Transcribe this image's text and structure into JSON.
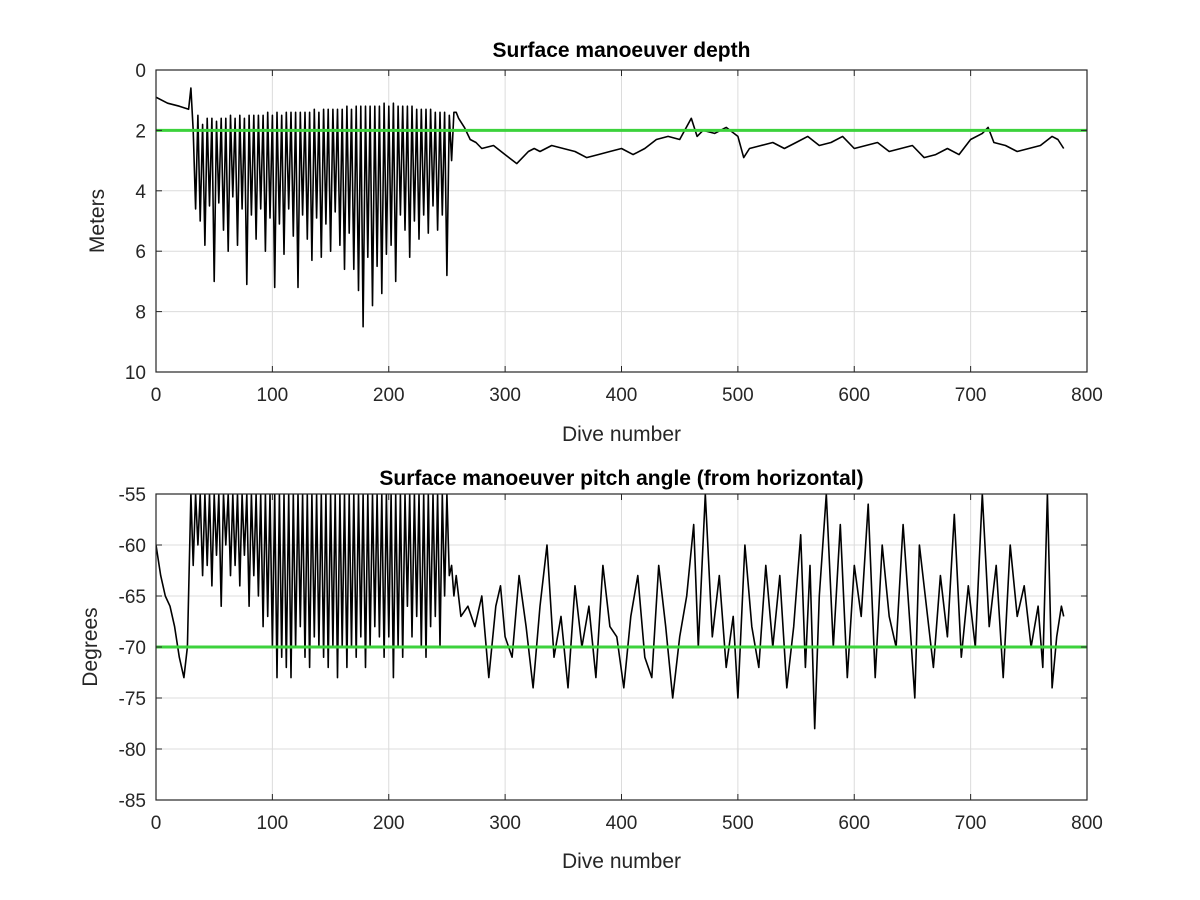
{
  "colors": {
    "series": "#000000",
    "reference": "#3cd23c",
    "grid": "#dcdcdc",
    "axes": "#262626"
  },
  "chart_data": [
    {
      "type": "line",
      "title": "Surface manoeuver depth",
      "xlabel": "Dive number",
      "ylabel": "Meters",
      "xlim": [
        0,
        800
      ],
      "ylim": [
        0,
        10
      ],
      "y_reversed": true,
      "grid": true,
      "xticks": [
        0,
        100,
        200,
        300,
        400,
        500,
        600,
        700,
        800
      ],
      "yticks": [
        0,
        2,
        4,
        6,
        8,
        10
      ],
      "xtick_labels": [
        "0",
        "100",
        "200",
        "300",
        "400",
        "500",
        "600",
        "700",
        "800"
      ],
      "ytick_labels": [
        "0",
        "2",
        "4",
        "6",
        "8",
        "10"
      ],
      "reference_line": {
        "y": 2,
        "x": [
          0,
          800
        ]
      },
      "series": [
        {
          "x": [
            0,
            10,
            20,
            28,
            30,
            32,
            34,
            36,
            38,
            40,
            42,
            44,
            46,
            48,
            50,
            52,
            54,
            56,
            58,
            60,
            62,
            64,
            66,
            68,
            70,
            72,
            74,
            76,
            78,
            80,
            82,
            84,
            86,
            88,
            90,
            92,
            94,
            96,
            98,
            100,
            102,
            104,
            106,
            108,
            110,
            112,
            114,
            116,
            118,
            120,
            122,
            124,
            126,
            128,
            130,
            132,
            134,
            136,
            138,
            140,
            142,
            144,
            146,
            148,
            150,
            152,
            154,
            156,
            158,
            160,
            162,
            164,
            166,
            168,
            170,
            172,
            174,
            176,
            178,
            180,
            182,
            184,
            186,
            188,
            190,
            192,
            194,
            196,
            198,
            200,
            202,
            204,
            206,
            208,
            210,
            212,
            214,
            216,
            218,
            220,
            222,
            224,
            226,
            228,
            230,
            232,
            234,
            236,
            238,
            240,
            242,
            244,
            246,
            248,
            250,
            252,
            254,
            256,
            258,
            260,
            265,
            270,
            275,
            280,
            290,
            300,
            310,
            320,
            325,
            330,
            340,
            350,
            360,
            370,
            380,
            390,
            400,
            410,
            420,
            430,
            440,
            450,
            460,
            465,
            470,
            480,
            490,
            500,
            505,
            510,
            520,
            530,
            540,
            550,
            560,
            570,
            580,
            590,
            600,
            610,
            620,
            630,
            640,
            650,
            660,
            670,
            680,
            690,
            700,
            710,
            715,
            720,
            730,
            740,
            750,
            760,
            770,
            775,
            780
          ],
          "y": [
            0.9,
            1.1,
            1.2,
            1.3,
            0.6,
            2.0,
            4.6,
            1.5,
            5.0,
            1.8,
            5.8,
            1.6,
            4.5,
            1.6,
            7.0,
            1.7,
            4.4,
            1.6,
            5.3,
            1.6,
            6.0,
            1.5,
            4.2,
            1.6,
            5.8,
            1.5,
            4.6,
            1.6,
            7.1,
            1.5,
            4.8,
            1.5,
            5.6,
            1.5,
            4.6,
            1.5,
            6.0,
            1.4,
            4.9,
            1.5,
            7.2,
            1.4,
            5.1,
            1.5,
            6.1,
            1.4,
            4.6,
            1.4,
            5.5,
            1.4,
            7.2,
            1.4,
            4.8,
            1.4,
            5.6,
            1.4,
            6.3,
            1.3,
            4.9,
            1.4,
            6.2,
            1.3,
            5.1,
            1.3,
            6.0,
            1.3,
            4.7,
            1.3,
            5.8,
            1.3,
            6.6,
            1.2,
            5.4,
            1.3,
            6.6,
            1.2,
            7.3,
            1.2,
            8.5,
            1.2,
            6.2,
            1.2,
            7.8,
            1.2,
            6.5,
            1.2,
            7.4,
            1.1,
            6.1,
            1.2,
            5.8,
            1.1,
            7.0,
            1.2,
            4.8,
            1.2,
            5.3,
            1.2,
            6.2,
            1.2,
            5.0,
            1.3,
            5.6,
            1.3,
            4.8,
            1.3,
            5.4,
            1.3,
            4.5,
            1.4,
            5.3,
            1.4,
            4.8,
            1.4,
            6.8,
            1.5,
            3.0,
            1.4,
            1.4,
            1.6,
            1.9,
            2.3,
            2.4,
            2.6,
            2.5,
            2.8,
            3.1,
            2.7,
            2.6,
            2.7,
            2.5,
            2.6,
            2.7,
            2.9,
            2.8,
            2.7,
            2.6,
            2.8,
            2.6,
            2.3,
            2.2,
            2.3,
            1.6,
            2.2,
            2.0,
            2.1,
            1.9,
            2.2,
            2.9,
            2.6,
            2.5,
            2.4,
            2.6,
            2.4,
            2.2,
            2.5,
            2.4,
            2.2,
            2.6,
            2.5,
            2.4,
            2.7,
            2.6,
            2.5,
            2.9,
            2.8,
            2.6,
            2.8,
            2.3,
            2.1,
            1.9,
            2.4,
            2.5,
            2.7,
            2.6,
            2.5,
            2.2,
            2.3,
            2.6
          ]
        }
      ]
    },
    {
      "type": "line",
      "title": "Surface manoeuver pitch angle (from horizontal)",
      "xlabel": "Dive number",
      "ylabel": "Degrees",
      "xlim": [
        0,
        800
      ],
      "ylim": [
        -85,
        -55
      ],
      "grid": true,
      "xticks": [
        0,
        100,
        200,
        300,
        400,
        500,
        600,
        700,
        800
      ],
      "yticks": [
        -55,
        -60,
        -65,
        -70,
        -75,
        -80,
        -85
      ],
      "xtick_labels": [
        "0",
        "100",
        "200",
        "300",
        "400",
        "500",
        "600",
        "700",
        "800"
      ],
      "ytick_labels": [
        "-55",
        "-60",
        "-65",
        "-70",
        "-75",
        "-80",
        "-85"
      ],
      "reference_line": {
        "y": -70,
        "x": [
          0,
          800
        ]
      },
      "series": [
        {
          "x": [
            0,
            4,
            8,
            12,
            16,
            20,
            24,
            27,
            30,
            32,
            34,
            36,
            38,
            40,
            42,
            44,
            46,
            48,
            50,
            52,
            54,
            56,
            58,
            60,
            62,
            64,
            66,
            68,
            70,
            72,
            74,
            76,
            78,
            80,
            82,
            84,
            86,
            88,
            90,
            92,
            94,
            96,
            98,
            100,
            102,
            104,
            106,
            108,
            110,
            112,
            114,
            116,
            118,
            120,
            122,
            124,
            126,
            128,
            130,
            132,
            134,
            136,
            138,
            140,
            142,
            144,
            146,
            148,
            150,
            152,
            154,
            156,
            158,
            160,
            162,
            164,
            166,
            168,
            170,
            172,
            174,
            176,
            178,
            180,
            182,
            184,
            186,
            188,
            190,
            192,
            194,
            196,
            198,
            200,
            202,
            204,
            206,
            208,
            210,
            212,
            214,
            216,
            218,
            220,
            222,
            224,
            226,
            228,
            230,
            232,
            234,
            236,
            238,
            240,
            242,
            244,
            246,
            248,
            250,
            252,
            254,
            256,
            258,
            262,
            268,
            274,
            280,
            286,
            292,
            296,
            300,
            306,
            312,
            318,
            324,
            330,
            336,
            342,
            348,
            354,
            360,
            366,
            372,
            378,
            384,
            390,
            396,
            402,
            408,
            414,
            420,
            426,
            432,
            438,
            444,
            450,
            456,
            462,
            466,
            472,
            478,
            484,
            490,
            496,
            500,
            506,
            512,
            518,
            524,
            530,
            536,
            542,
            548,
            554,
            558,
            562,
            566,
            570,
            576,
            582,
            588,
            594,
            600,
            606,
            612,
            618,
            624,
            630,
            636,
            642,
            648,
            652,
            656,
            662,
            668,
            674,
            680,
            686,
            692,
            698,
            704,
            710,
            716,
            722,
            728,
            734,
            740,
            746,
            752,
            758,
            762,
            766,
            770,
            774,
            778,
            780
          ],
          "y": [
            -60,
            -63,
            -65,
            -66,
            -68,
            -71,
            -73,
            -70,
            -55,
            -62,
            -55,
            -60,
            -55,
            -63,
            -55,
            -62,
            -55,
            -64,
            -55,
            -61,
            -55,
            -66,
            -55,
            -60,
            -55,
            -63,
            -55,
            -62,
            -55,
            -64,
            -55,
            -61,
            -55,
            -66,
            -55,
            -63,
            -55,
            -65,
            -55,
            -68,
            -55,
            -67,
            -55,
            -70,
            -55,
            -73,
            -55,
            -71,
            -55,
            -72,
            -55,
            -73,
            -55,
            -70,
            -55,
            -68,
            -55,
            -71,
            -55,
            -72,
            -55,
            -69,
            -55,
            -70,
            -55,
            -71,
            -55,
            -72,
            -55,
            -70,
            -55,
            -73,
            -55,
            -70,
            -55,
            -72,
            -55,
            -70,
            -55,
            -71,
            -55,
            -69,
            -55,
            -72,
            -55,
            -70,
            -55,
            -68,
            -55,
            -69,
            -55,
            -71,
            -55,
            -69,
            -55,
            -73,
            -55,
            -70,
            -55,
            -71,
            -55,
            -66,
            -55,
            -69,
            -55,
            -67,
            -55,
            -70,
            -55,
            -71,
            -55,
            -68,
            -55,
            -67,
            -55,
            -70,
            -55,
            -65,
            -55,
            -63,
            -62,
            -65,
            -63,
            -67,
            -66,
            -68,
            -65,
            -73,
            -66,
            -64,
            -69,
            -71,
            -63,
            -68,
            -74,
            -66,
            -60,
            -71,
            -67,
            -74,
            -64,
            -70,
            -66,
            -73,
            -62,
            -68,
            -69,
            -74,
            -67,
            -63,
            -71,
            -73,
            -62,
            -68,
            -75,
            -69,
            -65,
            -58,
            -70,
            -55,
            -69,
            -63,
            -72,
            -67,
            -75,
            -60,
            -68,
            -72,
            -62,
            -70,
            -63,
            -74,
            -68,
            -59,
            -72,
            -62,
            -78,
            -65,
            -55,
            -70,
            -58,
            -73,
            -62,
            -67,
            -56,
            -73,
            -60,
            -67,
            -70,
            -58,
            -68,
            -75,
            -60,
            -66,
            -72,
            -63,
            -69,
            -57,
            -71,
            -64,
            -70,
            -55,
            -68,
            -62,
            -73,
            -60,
            -67,
            -64,
            -70,
            -66,
            -72,
            -55,
            -74,
            -69,
            -66,
            -67
          ]
        }
      ]
    }
  ]
}
